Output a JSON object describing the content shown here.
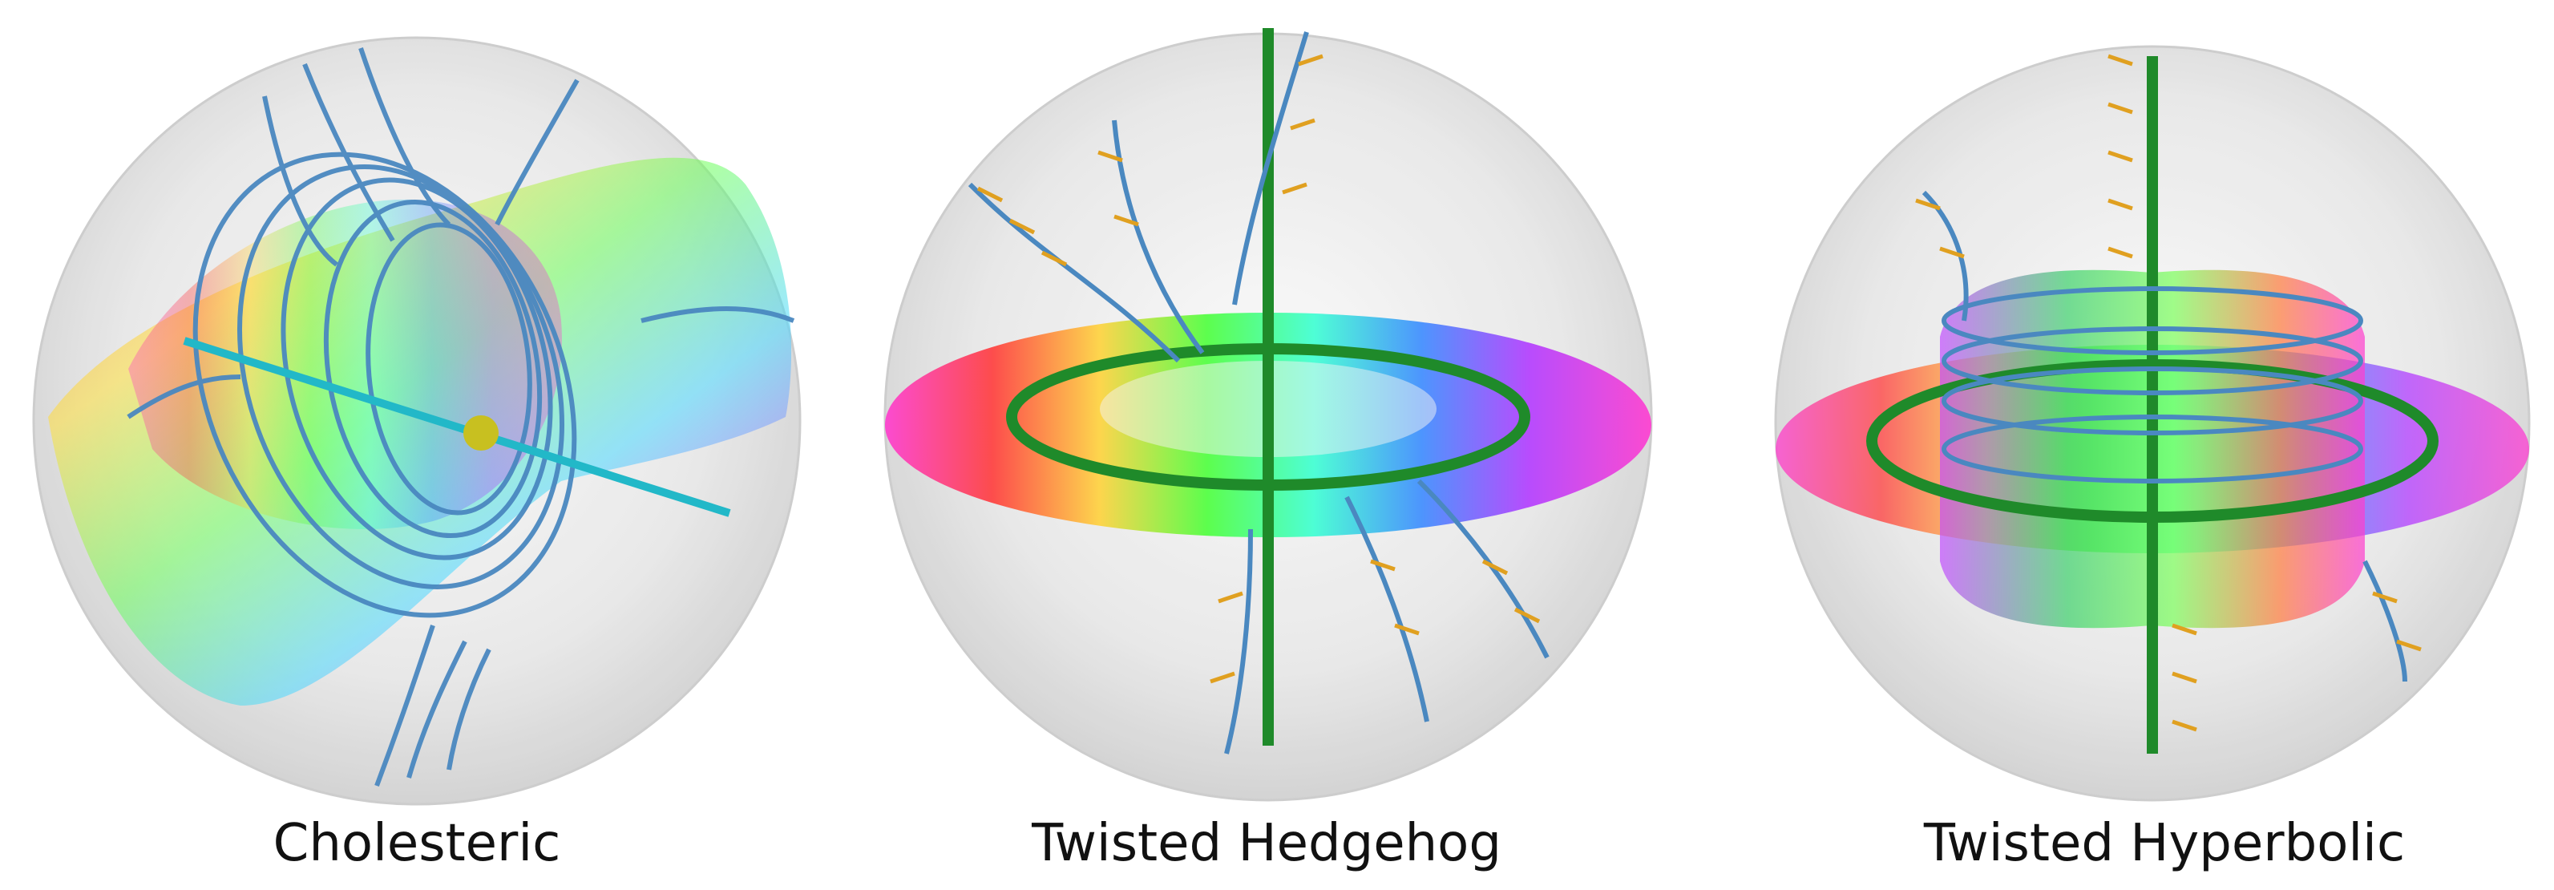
{
  "panels": [
    {
      "caption": "Cholesteric",
      "type": "cholesteric"
    },
    {
      "caption": "Twisted Hedgehog",
      "type": "hedgehog"
    },
    {
      "caption": "Twisted Hyperbolic",
      "type": "hyperbolic"
    }
  ],
  "colors": {
    "sphere": "#d9d9d9",
    "field_line": "#4a88c0",
    "director_arrow": "#e0a020",
    "defect_line": "#1f8a2a",
    "axis_cyan": "#22b8c8",
    "point_defect": "#c8c020"
  }
}
